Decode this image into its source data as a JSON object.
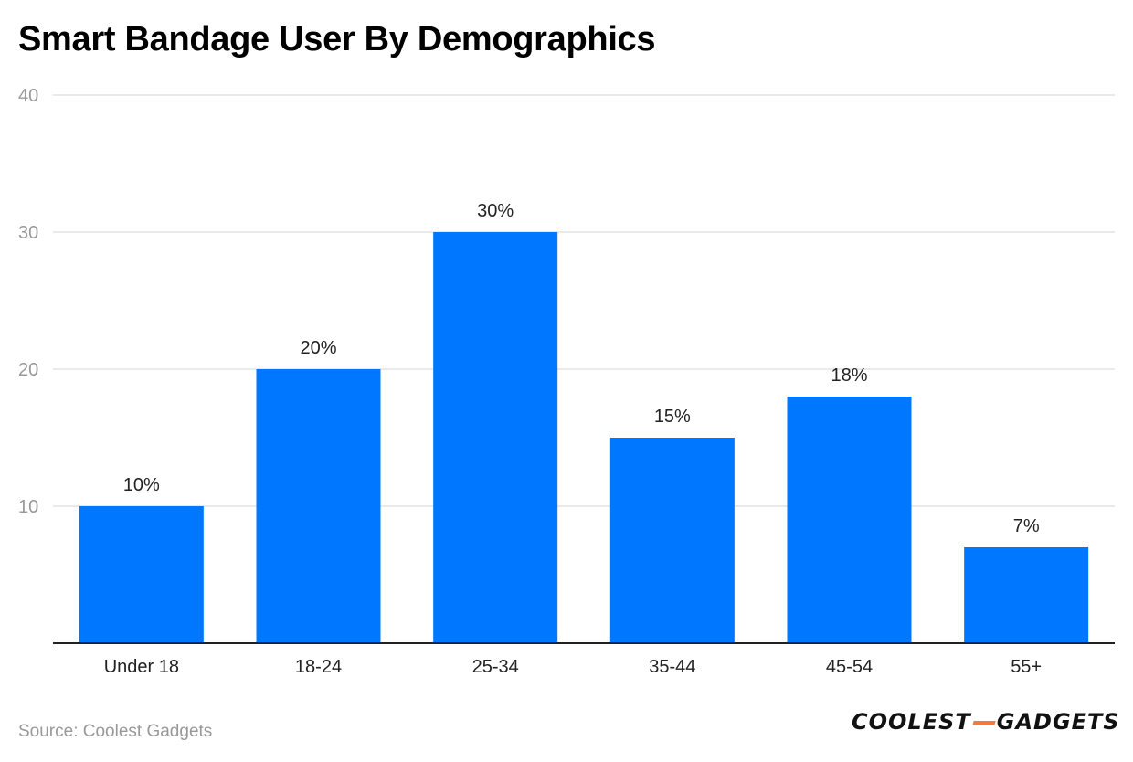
{
  "title": "Smart Bandage User By Demographics",
  "source": "Source: Coolest Gadgets",
  "logo": {
    "part1": "COOLEST",
    "part2": "GADGETS",
    "accent_color": "#f07c3c"
  },
  "chart_data": {
    "type": "bar",
    "categories": [
      "Under 18",
      "18-24",
      "25-34",
      "35-44",
      "45-54",
      "55+"
    ],
    "values": [
      10,
      20,
      30,
      15,
      18,
      7
    ],
    "data_labels": [
      "10%",
      "20%",
      "30%",
      "15%",
      "18%",
      "7%"
    ],
    "ylim": [
      0,
      40
    ],
    "yticks": [
      10,
      20,
      30,
      40
    ],
    "ytick_labels": [
      "10",
      "20",
      "30",
      "40"
    ],
    "grid": true,
    "bar_color": "#0077ff",
    "title": "Smart Bandage User By Demographics",
    "xlabel": "",
    "ylabel": ""
  }
}
